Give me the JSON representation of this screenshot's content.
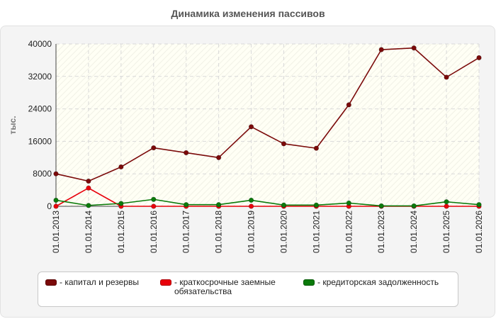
{
  "chart_data": {
    "type": "line",
    "title": "Динамика изменения пассивов",
    "ylabel": "тыс.",
    "xlabel": "",
    "ylim": [
      0,
      40000
    ],
    "yticks": [
      0,
      8000,
      16000,
      24000,
      32000,
      40000
    ],
    "grid": true,
    "legend_position": "bottom",
    "x": [
      "01.01.2013",
      "01.01.2014",
      "01.01.2015",
      "01.01.2016",
      "01.01.2017",
      "01.01.2018",
      "01.01.2019",
      "01.01.2020",
      "01.01.2021",
      "01.01.2022",
      "01.01.2023",
      "01.01.2024",
      "01.01.2025",
      "01.01.2026"
    ],
    "series": [
      {
        "name": "капитал и резервы",
        "color": "#7b0a0a",
        "values": [
          8000,
          6200,
          9700,
          14400,
          13200,
          12000,
          19600,
          15400,
          14300,
          25000,
          38600,
          39000,
          31800,
          36600
        ]
      },
      {
        "name": "краткосрочные заемные обязательства",
        "color": "#e8000b",
        "values": [
          0,
          4500,
          0,
          0,
          0,
          0,
          0,
          0,
          0,
          0,
          0,
          0,
          0,
          0
        ]
      },
      {
        "name": "кредиторская задолженность",
        "color": "#0b7a0b",
        "values": [
          1500,
          200,
          700,
          1700,
          400,
          400,
          1500,
          300,
          300,
          800,
          100,
          100,
          1100,
          400
        ]
      }
    ]
  },
  "legend": {
    "prefix": "- ",
    "items": [
      "капитал и резервы",
      "краткосрочные заемные\nобязательства",
      "кредиторская задолженность"
    ]
  }
}
